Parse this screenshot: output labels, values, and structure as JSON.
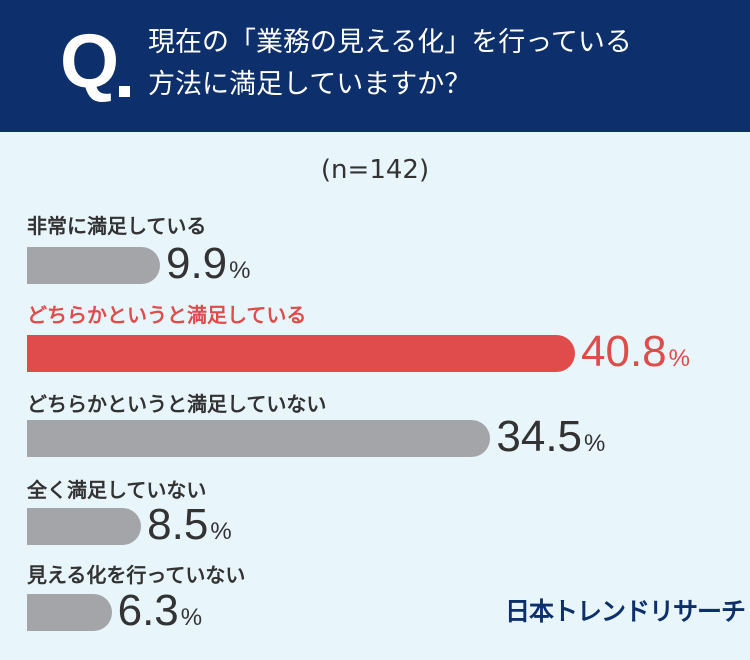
{
  "header": {
    "q_mark": "Q",
    "question_line1": "現在の「業務の見える化」を行っている",
    "question_line2": "方法に満足していますか？"
  },
  "sample_size": "(n=142)",
  "brand": "日本トレンドリサーチ",
  "colors": {
    "header_bg": "#0d2f6b",
    "page_bg": "#e8f6fc",
    "bar_default": "#a4a5a9",
    "bar_highlight": "#e04b4b"
  },
  "chart_data": {
    "type": "bar",
    "orientation": "horizontal",
    "unit": "%",
    "xlim": [
      0,
      40.8
    ],
    "highlight_index": 1,
    "categories": [
      "非常に満足している",
      "どちらかというと満足している",
      "どちらかというと満足していない",
      "全く満足していない",
      "見える化を行っていない"
    ],
    "values": [
      9.9,
      40.8,
      34.5,
      8.5,
      6.3
    ],
    "value_labels": [
      "9.9",
      "40.8",
      "34.5",
      "8.5",
      "6.3"
    ]
  }
}
